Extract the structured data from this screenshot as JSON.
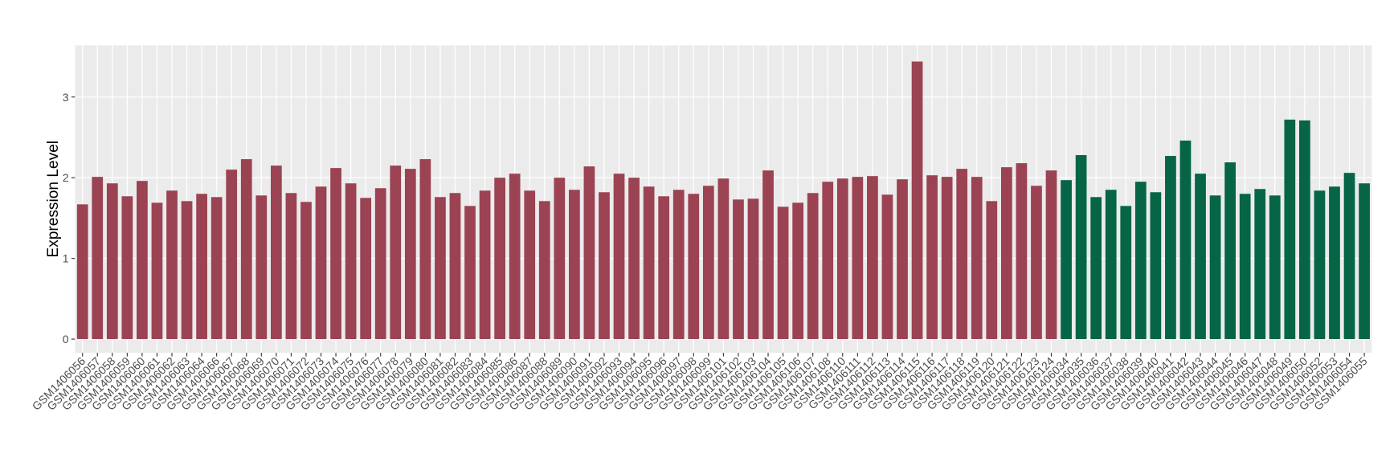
{
  "chart_data": {
    "type": "bar",
    "y_label": "Expression Level",
    "categories": [
      "GSM1406056",
      "GSM1406057",
      "GSM1406058",
      "GSM1406059",
      "GSM1406060",
      "GSM1406061",
      "GSM1406062",
      "GSM1406063",
      "GSM1406064",
      "GSM1406066",
      "GSM1406067",
      "GSM1406068",
      "GSM1406069",
      "GSM1406070",
      "GSM1406071",
      "GSM1406072",
      "GSM1406073",
      "GSM1406074",
      "GSM1406075",
      "GSM1406076",
      "GSM1406077",
      "GSM1406078",
      "GSM1406079",
      "GSM1406080",
      "GSM1406081",
      "GSM1406082",
      "GSM1406083",
      "GSM1406084",
      "GSM1406085",
      "GSM1406086",
      "GSM1406087",
      "GSM1406088",
      "GSM1406089",
      "GSM1406090",
      "GSM1406091",
      "GSM1406092",
      "GSM1406093",
      "GSM1406094",
      "GSM1406095",
      "GSM1406096",
      "GSM1406097",
      "GSM1406098",
      "GSM1406099",
      "GSM1406101",
      "GSM1406102",
      "GSM1406103",
      "GSM1406104",
      "GSM1406105",
      "GSM1406106",
      "GSM1406107",
      "GSM1406108",
      "GSM1406110",
      "GSM1406111",
      "GSM1406112",
      "GSM1406113",
      "GSM1406114",
      "GSM1406115",
      "GSM1406116",
      "GSM1406117",
      "GSM1406118",
      "GSM1406119",
      "GSM1406120",
      "GSM1406121",
      "GSM1406122",
      "GSM1406123",
      "GSM1406124",
      "GSM1406034",
      "GSM1406035",
      "GSM1406036",
      "GSM1406037",
      "GSM1406038",
      "GSM1406039",
      "GSM1406040",
      "GSM1406041",
      "GSM1406042",
      "GSM1406043",
      "GSM1406044",
      "GSM1406045",
      "GSM1406046",
      "GSM1406047",
      "GSM1406048",
      "GSM1406049",
      "GSM1406050",
      "GSM1406052",
      "GSM1406053",
      "GSM1406054",
      "GSM1406055"
    ],
    "series": [
      {
        "color": "#9b4352",
        "values": [
          1.67,
          2.01,
          1.93,
          1.77,
          1.96,
          1.69,
          1.84,
          1.71,
          1.8,
          1.76,
          2.1,
          2.23,
          1.78,
          2.15,
          1.81,
          1.7,
          1.89,
          2.12,
          1.93,
          1.75,
          1.87,
          2.15,
          2.11,
          2.23,
          1.76,
          1.81,
          1.65,
          1.84,
          2.0,
          2.05,
          1.84,
          1.71,
          2.0,
          1.85,
          2.14,
          1.82,
          2.05,
          2.0,
          1.89,
          1.77,
          1.85,
          1.8,
          1.9,
          1.99,
          1.73,
          1.74,
          2.09,
          1.64,
          1.69,
          1.81,
          1.95,
          1.99,
          2.01,
          2.02,
          1.79,
          1.98,
          3.44,
          2.03,
          2.01,
          2.11,
          2.01,
          1.71,
          2.13,
          2.18,
          1.9,
          2.09,
          null,
          null,
          null,
          null,
          null,
          null,
          null,
          null,
          null,
          null,
          null,
          null,
          null,
          null,
          null,
          null,
          null,
          null,
          null,
          null,
          null
        ]
      },
      {
        "color": "#066546",
        "values": [
          null,
          null,
          null,
          null,
          null,
          null,
          null,
          null,
          null,
          null,
          null,
          null,
          null,
          null,
          null,
          null,
          null,
          null,
          null,
          null,
          null,
          null,
          null,
          null,
          null,
          null,
          null,
          null,
          null,
          null,
          null,
          null,
          null,
          null,
          null,
          null,
          null,
          null,
          null,
          null,
          null,
          null,
          null,
          null,
          null,
          null,
          null,
          null,
          null,
          null,
          null,
          null,
          null,
          null,
          null,
          null,
          null,
          null,
          null,
          null,
          null,
          null,
          null,
          null,
          null,
          null,
          1.97,
          2.28,
          1.76,
          1.85,
          1.65,
          1.95,
          1.82,
          2.27,
          2.46,
          2.05,
          1.78,
          2.19,
          1.8,
          1.86,
          1.78,
          2.72,
          2.71,
          1.84,
          1.89,
          2.06,
          1.93
        ]
      }
    ],
    "ylim": [
      -0.17,
      3.64
    ],
    "yticks": [
      0,
      1,
      2,
      3
    ],
    "grid": true
  }
}
